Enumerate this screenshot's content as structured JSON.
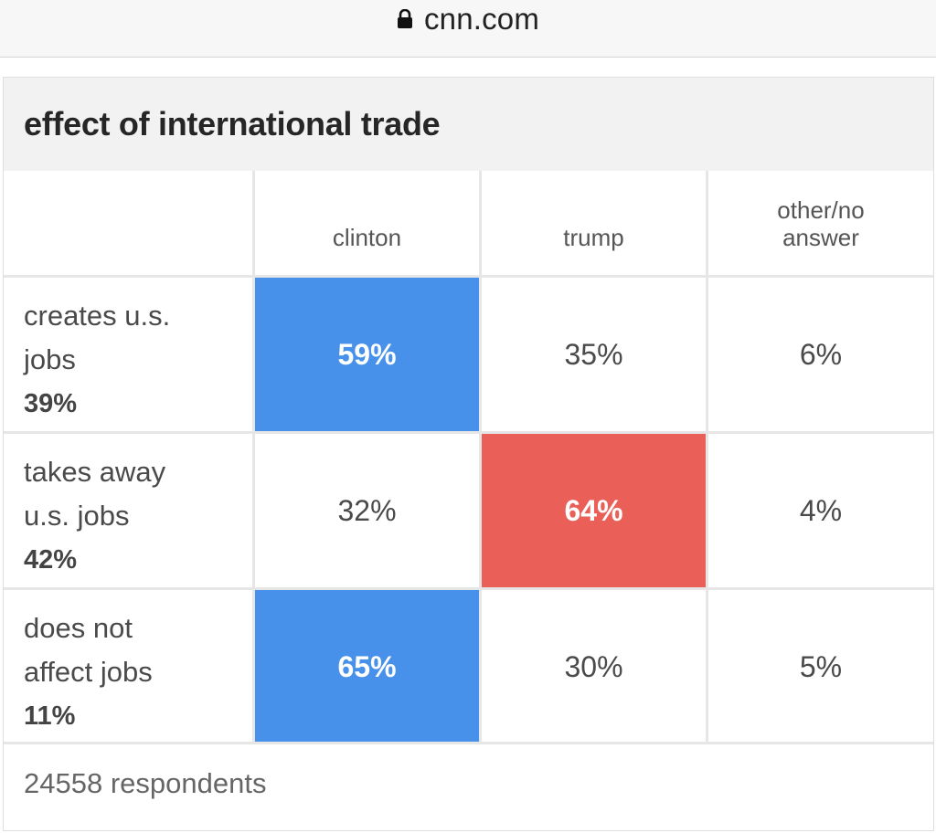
{
  "browser": {
    "url": "cnn.com"
  },
  "poll": {
    "title": "effect of international trade",
    "columns": [
      "clinton",
      "trump",
      "other/no answer"
    ],
    "rows": [
      {
        "label": "creates u.s. jobs",
        "share": "39%",
        "values": [
          "59%",
          "35%",
          "6%"
        ],
        "winner": 0
      },
      {
        "label": "takes away u.s. jobs",
        "share": "42%",
        "values": [
          "32%",
          "64%",
          "4%"
        ],
        "winner": 1
      },
      {
        "label": "does not affect jobs",
        "share": "11%",
        "values": [
          "65%",
          "30%",
          "5%"
        ],
        "winner": 0
      }
    ],
    "respondents": "24558 respondents"
  },
  "colors": {
    "clinton": "#4891ea",
    "trump": "#ea5f57"
  }
}
